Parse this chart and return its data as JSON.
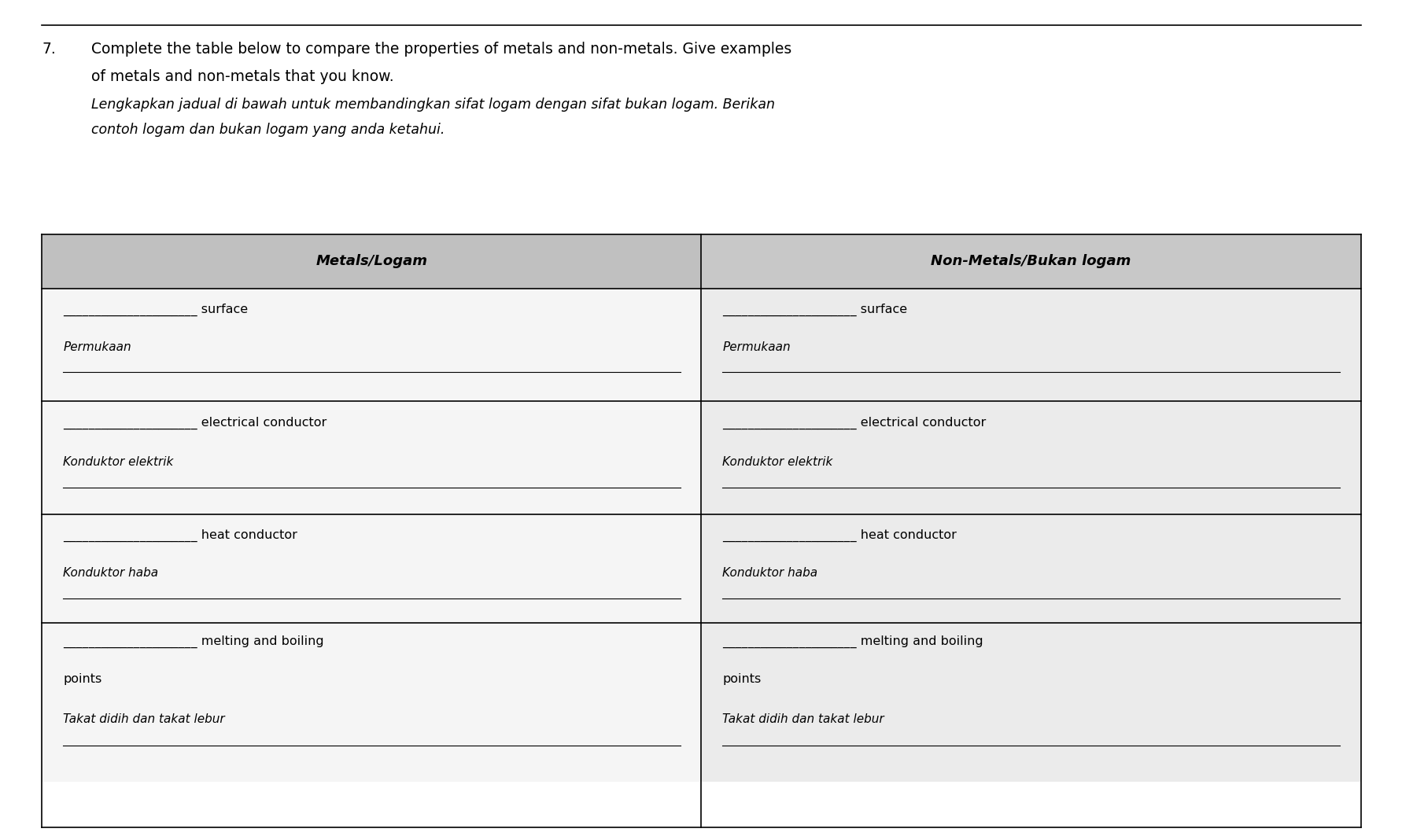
{
  "title_number": "7.",
  "title_line1": "Complete the table below to compare the properties of metals and non-metals. Give examples",
  "title_line2": "of metals and non-metals that you know.",
  "title_italic1": "Lengkapkan jadual di bawah untuk membandingkan sifat logam dengan sifat bukan logam. Berikan",
  "title_italic2": "contoh logam dan bukan logam yang anda ketahui.",
  "col1_header": "Metals/Logam",
  "col2_header": "Non-Metals/Bukan logam",
  "bg_color": "#e8e8e8",
  "table_bg": "#f0f0f0",
  "cell_bg": "#ffffff",
  "header_bg": "#d0d0d0",
  "rows": [
    {
      "left_top": "_____________________ surface",
      "left_bottom": "Permukaan  ____________________________________",
      "right_top": "_____________________ surface",
      "right_bottom": "Permukaan  ____________________________________"
    },
    {
      "left_top": "_____________________ electrical conductor",
      "left_bottom": "Konduktor elektrik  ____________________________",
      "right_top": "_____________________ electrical conductor",
      "right_bottom": "Konduktor elektrik  ____________________________"
    },
    {
      "left_top": "_____________________ heat conductor",
      "left_bottom": "Konduktor haba  ________________________________",
      "right_top": "_____________________ heat conductor",
      "right_bottom": "Konduktor haba  ________________________________"
    },
    {
      "left_top": "_____________________ melting and boiling",
      "left_bottom_line1": "points",
      "left_bottom_line2": "Takat didih dan takat lebur  ___________________",
      "right_top": "_____________________ melting and boiling",
      "right_bottom_line1": "points",
      "right_bottom_line2": "Takat didih dan takat lebur  ___________________"
    }
  ],
  "figure_bg": "#ffffff",
  "top_line_color": "#000000",
  "font_size_title": 13.5,
  "font_size_italic": 12.5,
  "font_size_header": 13,
  "font_size_cell": 11.5
}
